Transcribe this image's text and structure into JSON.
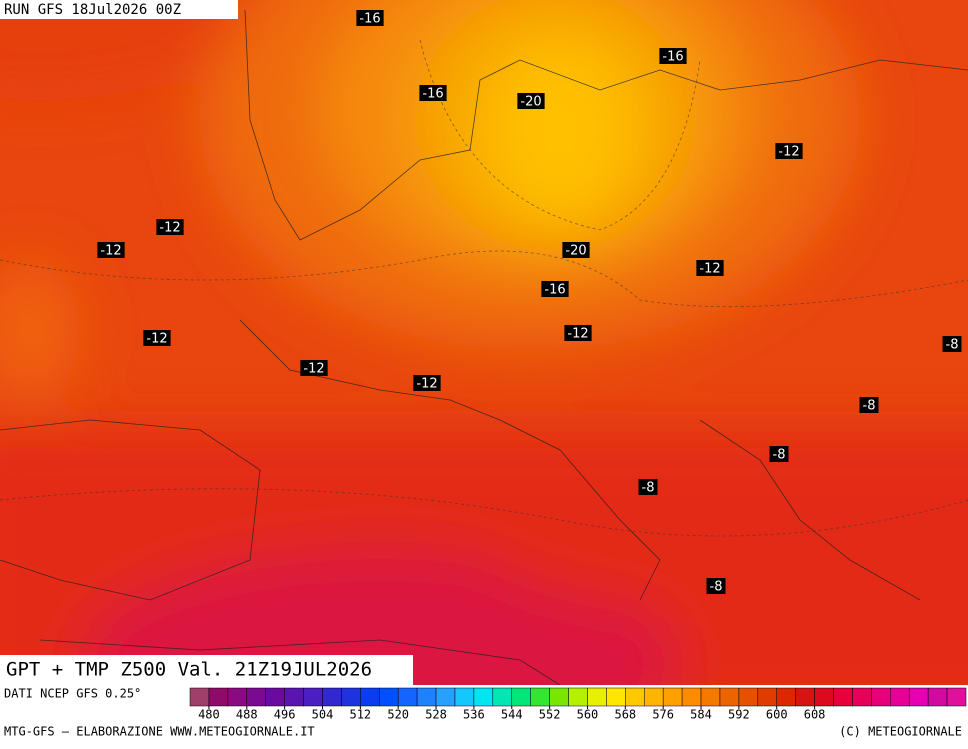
{
  "header": {
    "run": "RUN GFS 18Jul2026 00Z",
    "title": "GPT + TMP Z500 Val. 21Z19JUL2026"
  },
  "contour_labels": [
    "-16",
    "-16",
    "-20",
    "-16",
    "-12",
    "-12",
    "-12",
    "-20",
    "-12",
    "-16",
    "-12",
    "-12",
    "-8",
    "-12",
    "-12",
    "-8",
    "-8",
    "-8",
    "-8"
  ],
  "colorbar": {
    "colors": [
      "#a0406a",
      "#900a6a",
      "#8a0a80",
      "#7a0a90",
      "#6a0aa0",
      "#5a14b0",
      "#4a1ec0",
      "#3228d0",
      "#1e32e0",
      "#0a3cf0",
      "#0050ff",
      "#1464ff",
      "#1e82ff",
      "#28a0ff",
      "#14c8ff",
      "#00e6f0",
      "#00e6b4",
      "#00e678",
      "#32e632",
      "#78e600",
      "#b4f000",
      "#e6f000",
      "#ffe600",
      "#ffc800",
      "#ffb400",
      "#ffa000",
      "#ff8c00",
      "#f57800",
      "#eb6400",
      "#e65000",
      "#e13c00",
      "#dc2800",
      "#d71414",
      "#dc0a1e",
      "#e6003c",
      "#e6005a",
      "#e6007a",
      "#e60096",
      "#e600b4",
      "#d20aa0",
      "#e0109a"
    ],
    "ticks": [
      480,
      488,
      496,
      504,
      512,
      520,
      528,
      536,
      544,
      552,
      560,
      568,
      576,
      584,
      592,
      600,
      608
    ]
  },
  "footer": {
    "source": "DATI NCEP GFS 0.25°",
    "credit": "MTG-GFS — ELABORAZIONE WWW.METEOGIORNALE.IT",
    "copyright": "(C) METEOGIORNALE"
  }
}
